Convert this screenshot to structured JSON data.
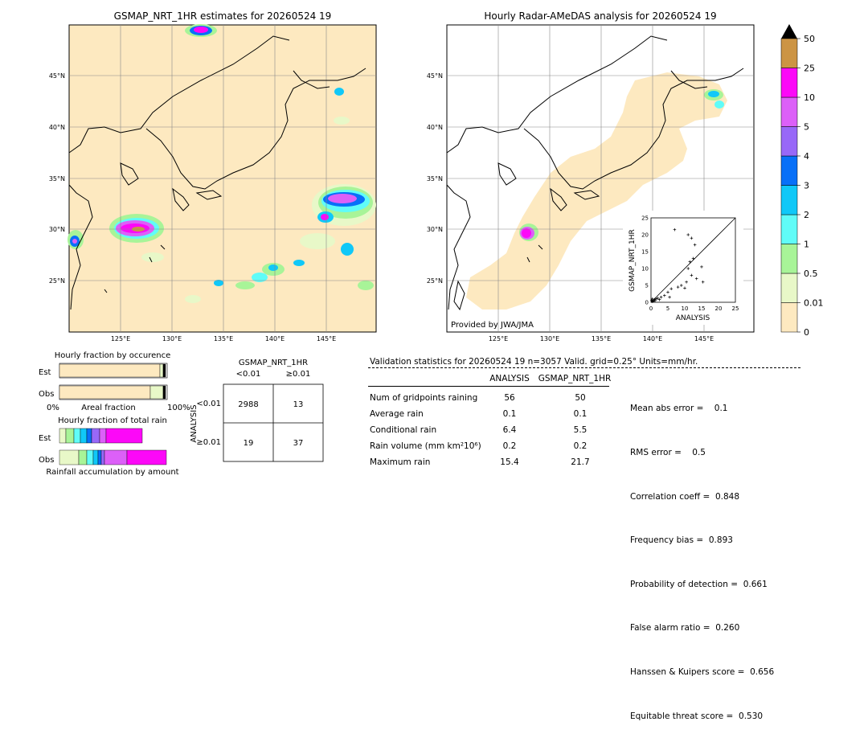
{
  "left_map": {
    "title": "GSMAP_NRT_1HR estimates for 20260524 19",
    "lon_ticks": [
      "125°E",
      "130°E",
      "135°E",
      "140°E",
      "145°E"
    ],
    "lat_ticks": [
      "45°N",
      "40°N",
      "35°N",
      "30°N",
      "25°N"
    ]
  },
  "right_map": {
    "title": "Hourly Radar-AMeDAS analysis for 20260524 19",
    "lon_ticks": [
      "125°E",
      "130°E",
      "135°E",
      "140°E",
      "145°E"
    ],
    "lat_ticks": [
      "45°N",
      "40°N",
      "35°N",
      "30°N",
      "25°N"
    ],
    "credit": "Provided by JWA/JMA"
  },
  "scatter": {
    "xlabel": "ANALYSIS",
    "ylabel": "GSMAP_NRT_1HR",
    "ticks": [
      "0",
      "5",
      "10",
      "15",
      "20",
      "25"
    ]
  },
  "colorbar": {
    "labels": [
      "0",
      "0.01",
      "0.5",
      "1",
      "2",
      "3",
      "4",
      "5",
      "10",
      "25",
      "50"
    ],
    "colors": [
      "#fde9c0",
      "#e8f8c8",
      "#a8f498",
      "#60fcf8",
      "#10c8f8",
      "#0870f8",
      "#9868f8",
      "#dc60f8",
      "#fc08f8",
      "#cc9444"
    ]
  },
  "fraction_occurrence": {
    "title": "Hourly fraction by occurence",
    "rows": [
      "Est",
      "Obs"
    ],
    "axis_left": "0%",
    "axis_mid": "Areal fraction",
    "axis_right": "100%"
  },
  "fraction_total": {
    "title": "Hourly fraction of total rain",
    "rows": [
      "Est",
      "Obs"
    ],
    "caption": "Rainfall accumulation by amount"
  },
  "contingency": {
    "title": "GSMAP_NRT_1HR",
    "col_headers": [
      "<0.01",
      "≥0.01"
    ],
    "side_label": "ANALYSIS",
    "row_headers": [
      "<0.01",
      "≥0.01"
    ],
    "cells": [
      [
        "2988",
        "13"
      ],
      [
        "19",
        "37"
      ]
    ]
  },
  "validation": {
    "header": "Validation statistics for 20260524 19  n=3057 Valid. grid=0.25° Units=mm/hr.",
    "col_analysis": "ANALYSIS",
    "col_gsmap": "GSMAP_NRT_1HR",
    "rows": [
      {
        "label": "Num of gridpoints raining",
        "analysis": "56",
        "gsmap": "50"
      },
      {
        "label": "Average rain",
        "analysis": "0.1",
        "gsmap": "0.1"
      },
      {
        "label": "Conditional rain",
        "analysis": "6.4",
        "gsmap": "5.5"
      },
      {
        "label": "Rain volume (mm km²10⁶)",
        "analysis": "0.2",
        "gsmap": "0.2"
      },
      {
        "label": "Maximum rain",
        "analysis": "15.4",
        "gsmap": "21.7"
      }
    ],
    "scores": [
      "Mean abs error =    0.1",
      "RMS error =    0.5",
      "Correlation coeff =  0.848",
      "Frequency bias =  0.893",
      "Probability of detection =  0.661",
      "False alarm ratio =  0.260",
      "Hanssen & Kuipers score =  0.656",
      "Equitable threat score =  0.530"
    ]
  },
  "chart_data": [
    {
      "type": "scatter",
      "xlabel": "ANALYSIS",
      "ylabel": "GSMAP_NRT_1HR",
      "xlim": [
        0,
        25
      ],
      "ylim": [
        0,
        25
      ],
      "points": [
        [
          0.3,
          0.2
        ],
        [
          0.5,
          0.4
        ],
        [
          0.8,
          0.3
        ],
        [
          1.0,
          0.8
        ],
        [
          1.2,
          0.5
        ],
        [
          1.5,
          1.0
        ],
        [
          2.0,
          1.2
        ],
        [
          0.4,
          1.0
        ],
        [
          0.2,
          0.6
        ],
        [
          3.0,
          1.5
        ],
        [
          2.5,
          0.8
        ],
        [
          4.0,
          2.0
        ],
        [
          5.0,
          3.0
        ],
        [
          5.5,
          1.5
        ],
        [
          6.0,
          4.0
        ],
        [
          7.0,
          21.5
        ],
        [
          8.0,
          4.5
        ],
        [
          9.0,
          5.0
        ],
        [
          10.0,
          4.2
        ],
        [
          10.5,
          6.0
        ],
        [
          11.0,
          10.0
        ],
        [
          11.0,
          20.0
        ],
        [
          12.0,
          19.0
        ],
        [
          12.5,
          13.0
        ],
        [
          13.0,
          17.0
        ],
        [
          13.5,
          7.0
        ],
        [
          12.0,
          8.0
        ],
        [
          15.0,
          10.5
        ],
        [
          15.4,
          6.0
        ],
        [
          11.5,
          12.0
        ]
      ]
    }
  ]
}
